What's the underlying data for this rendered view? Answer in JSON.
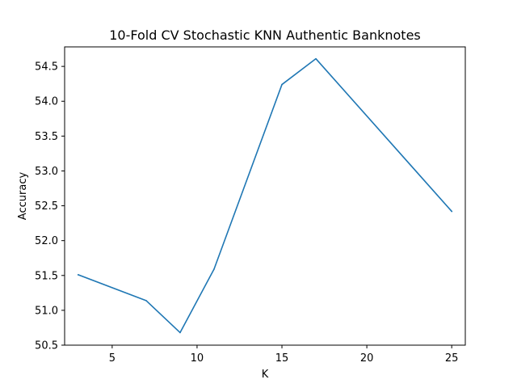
{
  "chart_data": {
    "type": "line",
    "title": "10-Fold CV Stochastic KNN Authentic Banknotes",
    "xlabel": "K",
    "ylabel": "Accuracy",
    "xlim": [
      2.2,
      25.8
    ],
    "ylim": [
      50.5,
      54.78
    ],
    "xticks": [
      5,
      10,
      15,
      20,
      25
    ],
    "yticks": [
      50.5,
      51.0,
      51.5,
      52.0,
      52.5,
      53.0,
      53.5,
      54.0,
      54.5
    ],
    "ytick_labels": [
      "50.5",
      "51.0",
      "51.5",
      "52.0",
      "52.5",
      "53.0",
      "53.5",
      "54.0",
      "54.5"
    ],
    "grid": false,
    "legend": "none",
    "series": [
      {
        "color": "#1f77b4",
        "x": [
          3,
          7,
          9,
          11,
          15,
          17,
          25
        ],
        "y": [
          51.51,
          51.14,
          50.68,
          51.59,
          54.24,
          54.61,
          52.42
        ]
      }
    ]
  }
}
